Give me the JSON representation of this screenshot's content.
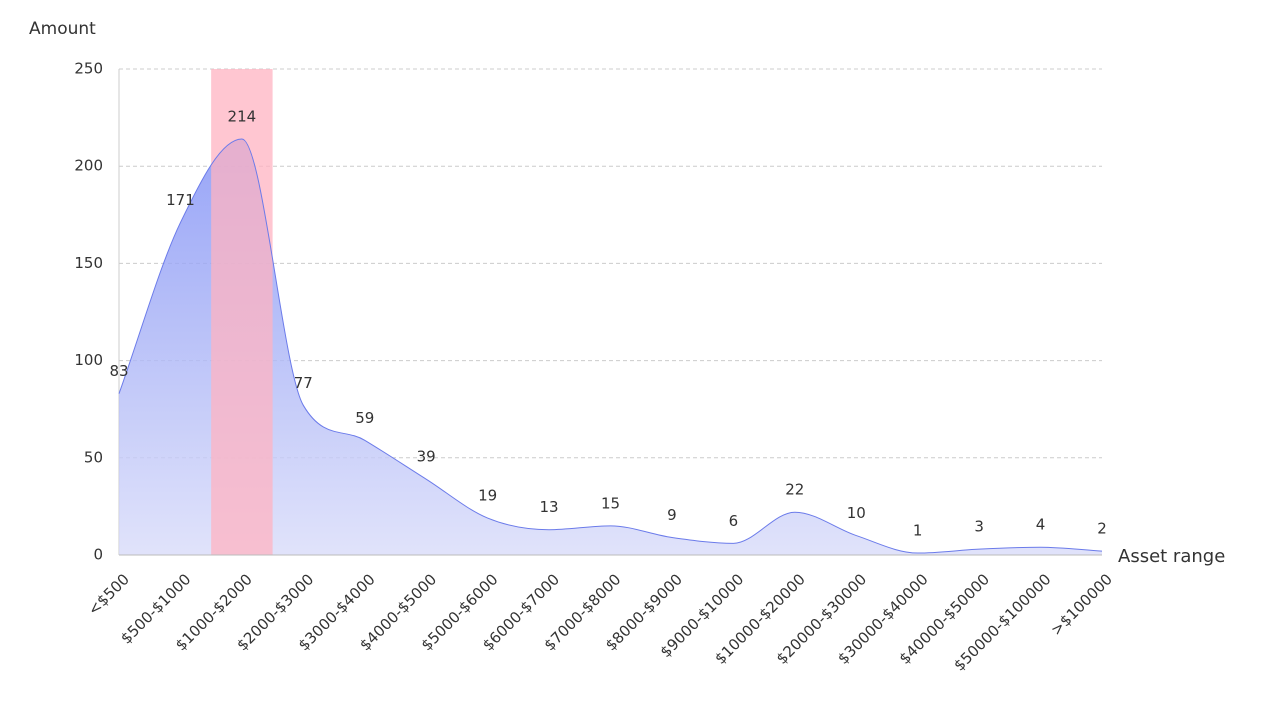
{
  "chart_data": {
    "type": "area",
    "y_label": "Amount",
    "x_label": "Asset range",
    "categories": [
      "<$500",
      "$500-$1000",
      "$1000-$2000",
      "$2000-$3000",
      "$3000-$4000",
      "$4000-$5000",
      "$5000-$6000",
      "$6000-$7000",
      "$7000-$8000",
      "$8000-$9000",
      "$9000-$10000",
      "$10000-$20000",
      "$20000-$30000",
      "$30000-$40000",
      "$40000-$50000",
      "$50000-$100000",
      ">$100000"
    ],
    "values": [
      83,
      171,
      214,
      77,
      59,
      39,
      19,
      13,
      15,
      9,
      6,
      22,
      10,
      1,
      3,
      4,
      2
    ],
    "color": "#6b7bea",
    "highlight_index": 2,
    "highlight_color": "#ffb3c1",
    "ylim": [
      0,
      250
    ],
    "yticks": [
      0,
      50,
      100,
      150,
      200,
      250
    ],
    "grid": true
  }
}
